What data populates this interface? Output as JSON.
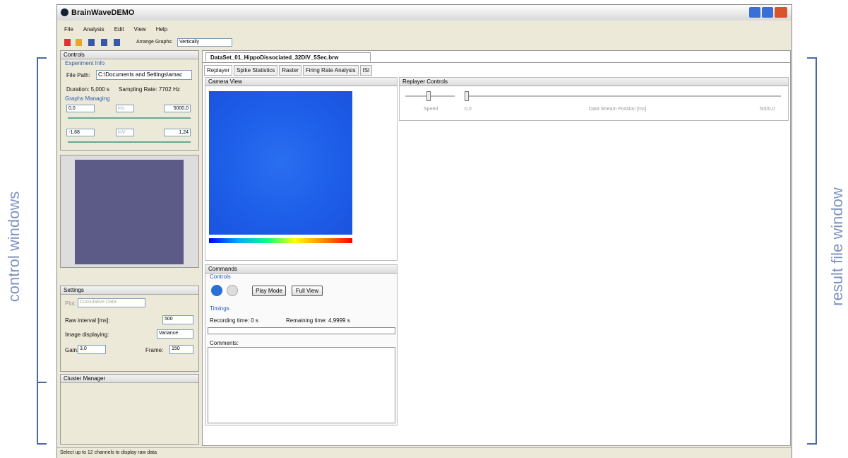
{
  "annotations": {
    "left": "control windows",
    "right": "result file window"
  },
  "window": {
    "title": "BrainWaveDEMO",
    "menu": [
      "File",
      "Analysis",
      "Edit",
      "View",
      "Help"
    ],
    "toolbar": {
      "arrange_label": "Arrange Graphs:",
      "arrange_value": "Vertically"
    },
    "controls": {
      "title": "Controls",
      "experiment_info": {
        "title": "Experiment Info",
        "file_path_label": "File Path:",
        "file_path": "C:\\Documents and Settings\\amac",
        "duration": "Duration: 5,000 s",
        "sampling_rate": "Sampling Rate: 7702 Hz"
      },
      "graphs_managing": {
        "title": "Graphs Managing",
        "x_min": "0,0",
        "x_unit": "ms",
        "x_max": "5000,0",
        "y_min": "-1,68",
        "y_unit": "mV",
        "y_max": "1,24"
      }
    },
    "settings": {
      "title": "Settings",
      "plot_label": "Plot:",
      "plot_value": "Cumulative Data",
      "raw_interval_label": "Raw interval [ms]:",
      "raw_interval": "500",
      "image_label": "Image displaying:",
      "image_value": "Variance",
      "gain_label": "Gain:",
      "gain": "3,0",
      "frame_label": "Frame:",
      "frame": "150"
    },
    "cluster_manager": {
      "title": "Cluster Manager"
    },
    "document_tab": "DataSet_01_HippoDissociated_32DIV_5Sec.brw",
    "tabs": [
      "Replayer",
      "Spike Statistics",
      "Raster",
      "Firing Rate Analysis",
      "ISI"
    ],
    "camera_view": {
      "title": "Camera View"
    },
    "commands": {
      "title": "Commands",
      "controls_title": "Controls",
      "play_mode": "Play Mode",
      "full_view": "Full View",
      "timings_title": "Timings",
      "recording_time": "Recording time: 0 s",
      "remaining_time": "Remaining time: 4,9999 s",
      "comments": "Comments:"
    },
    "replayer_controls": {
      "title": "Replayer Controls",
      "speed": "Speed",
      "start": "0,0",
      "position_label": "Data Stream Position [ms]",
      "end": "5000,0"
    },
    "status": "Select up to 12 channels to display raw data"
  }
}
